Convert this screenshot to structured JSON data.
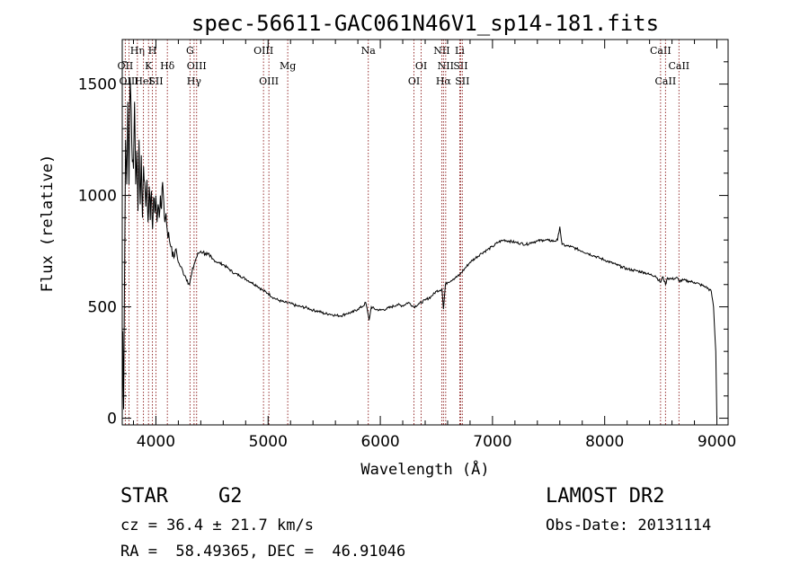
{
  "chart_data": {
    "type": "line",
    "title": "spec-56611-GAC061N46V1_sp14-181.fits",
    "xlabel": "Wavelength (Å)",
    "ylabel": "Flux (relative)",
    "xlim": [
      3700,
      9100
    ],
    "ylim": [
      -30,
      1700
    ],
    "x_ticks": [
      4000,
      5000,
      6000,
      7000,
      8000,
      9000
    ],
    "y_ticks": [
      0,
      500,
      1000,
      1500
    ],
    "grid": false,
    "series": [
      {
        "points": [
          [
            3700,
            0
          ],
          [
            3705,
            390
          ],
          [
            3712,
            40
          ],
          [
            3720,
            600
          ],
          [
            3730,
            1250
          ],
          [
            3740,
            1050
          ],
          [
            3750,
            1420
          ],
          [
            3760,
            1050
          ],
          [
            3770,
            1530
          ],
          [
            3780,
            1380
          ],
          [
            3790,
            1150
          ],
          [
            3800,
            1120
          ],
          [
            3810,
            1420
          ],
          [
            3820,
            1050
          ],
          [
            3830,
            1200
          ],
          [
            3840,
            930
          ],
          [
            3850,
            1250
          ],
          [
            3860,
            960
          ],
          [
            3870,
            1180
          ],
          [
            3880,
            900
          ],
          [
            3890,
            1130
          ],
          [
            3900,
            1060
          ],
          [
            3910,
            950
          ],
          [
            3920,
            1070
          ],
          [
            3930,
            880
          ],
          [
            3940,
            1040
          ],
          [
            3950,
            890
          ],
          [
            3960,
            1020
          ],
          [
            3970,
            850
          ],
          [
            3980,
            990
          ],
          [
            3990,
            920
          ],
          [
            4000,
            1000
          ],
          [
            4010,
            880
          ],
          [
            4020,
            960
          ],
          [
            4030,
            900
          ],
          [
            4040,
            1000
          ],
          [
            4050,
            940
          ],
          [
            4060,
            1060
          ],
          [
            4070,
            970
          ],
          [
            4080,
            880
          ],
          [
            4090,
            920
          ],
          [
            4100,
            850
          ],
          [
            4120,
            800
          ],
          [
            4140,
            770
          ],
          [
            4160,
            720
          ],
          [
            4180,
            760
          ],
          [
            4200,
            700
          ],
          [
            4220,
            680
          ],
          [
            4240,
            660
          ],
          [
            4260,
            640
          ],
          [
            4280,
            620
          ],
          [
            4300,
            600
          ],
          [
            4320,
            650
          ],
          [
            4340,
            690
          ],
          [
            4360,
            720
          ],
          [
            4380,
            740
          ],
          [
            4400,
            750
          ],
          [
            4420,
            745
          ],
          [
            4440,
            740
          ],
          [
            4460,
            735
          ],
          [
            4480,
            725
          ],
          [
            4500,
            715
          ],
          [
            4550,
            700
          ],
          [
            4600,
            690
          ],
          [
            4650,
            670
          ],
          [
            4700,
            650
          ],
          [
            4750,
            640
          ],
          [
            4800,
            625
          ],
          [
            4850,
            610
          ],
          [
            4900,
            595
          ],
          [
            4950,
            575
          ],
          [
            5000,
            560
          ],
          [
            5050,
            540
          ],
          [
            5100,
            528
          ],
          [
            5150,
            520
          ],
          [
            5200,
            515
          ],
          [
            5250,
            505
          ],
          [
            5300,
            500
          ],
          [
            5350,
            495
          ],
          [
            5400,
            485
          ],
          [
            5450,
            480
          ],
          [
            5500,
            470
          ],
          [
            5550,
            468
          ],
          [
            5600,
            462
          ],
          [
            5650,
            460
          ],
          [
            5700,
            470
          ],
          [
            5750,
            475
          ],
          [
            5800,
            490
          ],
          [
            5850,
            505
          ],
          [
            5870,
            520
          ],
          [
            5890,
            470
          ],
          [
            5900,
            440
          ],
          [
            5920,
            500
          ],
          [
            5950,
            490
          ],
          [
            6000,
            485
          ],
          [
            6050,
            490
          ],
          [
            6100,
            500
          ],
          [
            6150,
            510
          ],
          [
            6200,
            505
          ],
          [
            6250,
            520
          ],
          [
            6300,
            500
          ],
          [
            6350,
            515
          ],
          [
            6400,
            530
          ],
          [
            6450,
            545
          ],
          [
            6500,
            570
          ],
          [
            6550,
            580
          ],
          [
            6563,
            490
          ],
          [
            6580,
            600
          ],
          [
            6600,
            610
          ],
          [
            6650,
            625
          ],
          [
            6700,
            640
          ],
          [
            6750,
            670
          ],
          [
            6800,
            700
          ],
          [
            6850,
            720
          ],
          [
            6900,
            740
          ],
          [
            6950,
            755
          ],
          [
            7000,
            770
          ],
          [
            7050,
            790
          ],
          [
            7100,
            800
          ],
          [
            7150,
            795
          ],
          [
            7200,
            790
          ],
          [
            7250,
            785
          ],
          [
            7300,
            780
          ],
          [
            7350,
            790
          ],
          [
            7400,
            795
          ],
          [
            7450,
            800
          ],
          [
            7500,
            798
          ],
          [
            7550,
            795
          ],
          [
            7580,
            800
          ],
          [
            7600,
            860
          ],
          [
            7620,
            780
          ],
          [
            7650,
            775
          ],
          [
            7700,
            770
          ],
          [
            7750,
            760
          ],
          [
            7800,
            750
          ],
          [
            7850,
            740
          ],
          [
            7900,
            730
          ],
          [
            7950,
            720
          ],
          [
            8000,
            710
          ],
          [
            8050,
            700
          ],
          [
            8100,
            690
          ],
          [
            8150,
            680
          ],
          [
            8200,
            670
          ],
          [
            8250,
            665
          ],
          [
            8300,
            660
          ],
          [
            8350,
            655
          ],
          [
            8400,
            645
          ],
          [
            8450,
            640
          ],
          [
            8498,
            610
          ],
          [
            8520,
            635
          ],
          [
            8542,
            600
          ],
          [
            8560,
            630
          ],
          [
            8600,
            625
          ],
          [
            8650,
            630
          ],
          [
            8662,
            615
          ],
          [
            8700,
            620
          ],
          [
            8750,
            615
          ],
          [
            8800,
            610
          ],
          [
            8850,
            600
          ],
          [
            8900,
            590
          ],
          [
            8950,
            570
          ],
          [
            8970,
            500
          ],
          [
            8990,
            300
          ],
          [
            9000,
            0
          ]
        ]
      }
    ],
    "line_markers": [
      {
        "wl": 3727,
        "labels": [
          "OII"
        ],
        "rows": [
          2
        ]
      },
      {
        "wl": 3760,
        "labels": [
          "OIII"
        ],
        "rows": [
          3
        ]
      },
      {
        "wl": 3835,
        "labels": [
          "Hη"
        ],
        "rows": [
          1
        ]
      },
      {
        "wl": 3889,
        "labels": [
          "HeI"
        ],
        "rows": [
          3
        ]
      },
      {
        "wl": 3934,
        "labels": [
          "K"
        ],
        "rows": [
          2
        ]
      },
      {
        "wl": 3969,
        "labels": [
          "H"
        ],
        "rows": [
          1
        ]
      },
      {
        "wl": 4000,
        "labels": [
          "SII"
        ],
        "rows": [
          3
        ]
      },
      {
        "wl": 4102,
        "labels": [
          "Hδ"
        ],
        "rows": [
          2
        ]
      },
      {
        "wl": 4304,
        "labels": [
          "G"
        ],
        "rows": [
          1
        ]
      },
      {
        "wl": 4340,
        "labels": [
          "Hγ"
        ],
        "rows": [
          3
        ]
      },
      {
        "wl": 4363,
        "labels": [
          "OIII"
        ],
        "rows": [
          2
        ]
      },
      {
        "wl": 4959,
        "labels": [
          "OIII"
        ],
        "rows": [
          1
        ]
      },
      {
        "wl": 5007,
        "labels": [
          "OIII"
        ],
        "rows": [
          3
        ]
      },
      {
        "wl": 5175,
        "labels": [
          "Mg"
        ],
        "rows": [
          2
        ]
      },
      {
        "wl": 5893,
        "labels": [
          "Na"
        ],
        "rows": [
          1
        ]
      },
      {
        "wl": 6300,
        "labels": [
          "OI"
        ],
        "rows": [
          3
        ]
      },
      {
        "wl": 6364,
        "labels": [
          "OI"
        ],
        "rows": [
          2
        ]
      },
      {
        "wl": 6548,
        "labels": [
          "NII"
        ],
        "rows": [
          1
        ]
      },
      {
        "wl": 6563,
        "labels": [
          "Hα"
        ],
        "rows": [
          3
        ]
      },
      {
        "wl": 6583,
        "labels": [
          "NII"
        ],
        "rows": [
          2
        ]
      },
      {
        "wl": 6708,
        "labels": [
          "Li"
        ],
        "rows": [
          1
        ]
      },
      {
        "wl": 6716,
        "labels": [
          "SII"
        ],
        "rows": [
          2
        ]
      },
      {
        "wl": 6731,
        "labels": [
          "SII"
        ],
        "rows": [
          3
        ]
      },
      {
        "wl": 8498,
        "labels": [
          "CaII"
        ],
        "rows": [
          1
        ]
      },
      {
        "wl": 8542,
        "labels": [
          "CaII"
        ],
        "rows": [
          3
        ]
      },
      {
        "wl": 8662,
        "labels": [
          "CaII"
        ],
        "rows": [
          2
        ]
      }
    ],
    "colors": {
      "spectrum": "#000000",
      "markers": "#8b1a1a",
      "axes": "#000000"
    }
  },
  "info": {
    "class_label": "STAR",
    "subclass_label": "G2",
    "survey": "LAMOST DR2",
    "cz": "cz = 36.4 ± 21.7 km/s",
    "obs_date": "Obs-Date: 20131114",
    "radec": "RA =  58.49365, DEC =  46.91046"
  }
}
